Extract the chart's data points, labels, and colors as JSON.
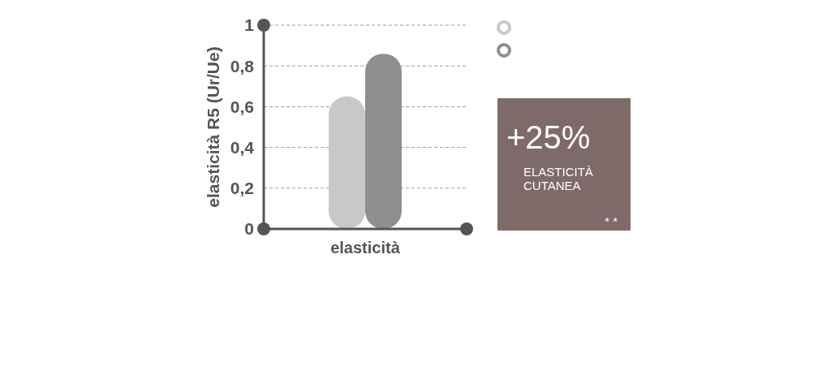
{
  "chart_data": [
    {
      "type": "bar",
      "ylabel": "elasticità R5 (Ur/Ue)",
      "categories": [
        "elasticità"
      ],
      "series": [
        {
          "color": "#c8c8c8",
          "values": [
            0.65
          ]
        },
        {
          "color": "#8f8f8f",
          "values": [
            0.86
          ]
        }
      ],
      "ylim": [
        0,
        1
      ],
      "yticks": [
        0,
        {
          "value": 0.2,
          "label": "0,2"
        },
        {
          "value": 0.4,
          "label": "0,4"
        },
        {
          "value": 0.6,
          "label": "0,6"
        },
        {
          "value": 0.8,
          "label": "0,8"
        },
        1
      ],
      "grid": "y"
    },
    {
      "type": "other",
      "annotations": [
        "+25%",
        "ELASTICITÀ CUTANEA",
        "**"
      ]
    }
  ]
}
